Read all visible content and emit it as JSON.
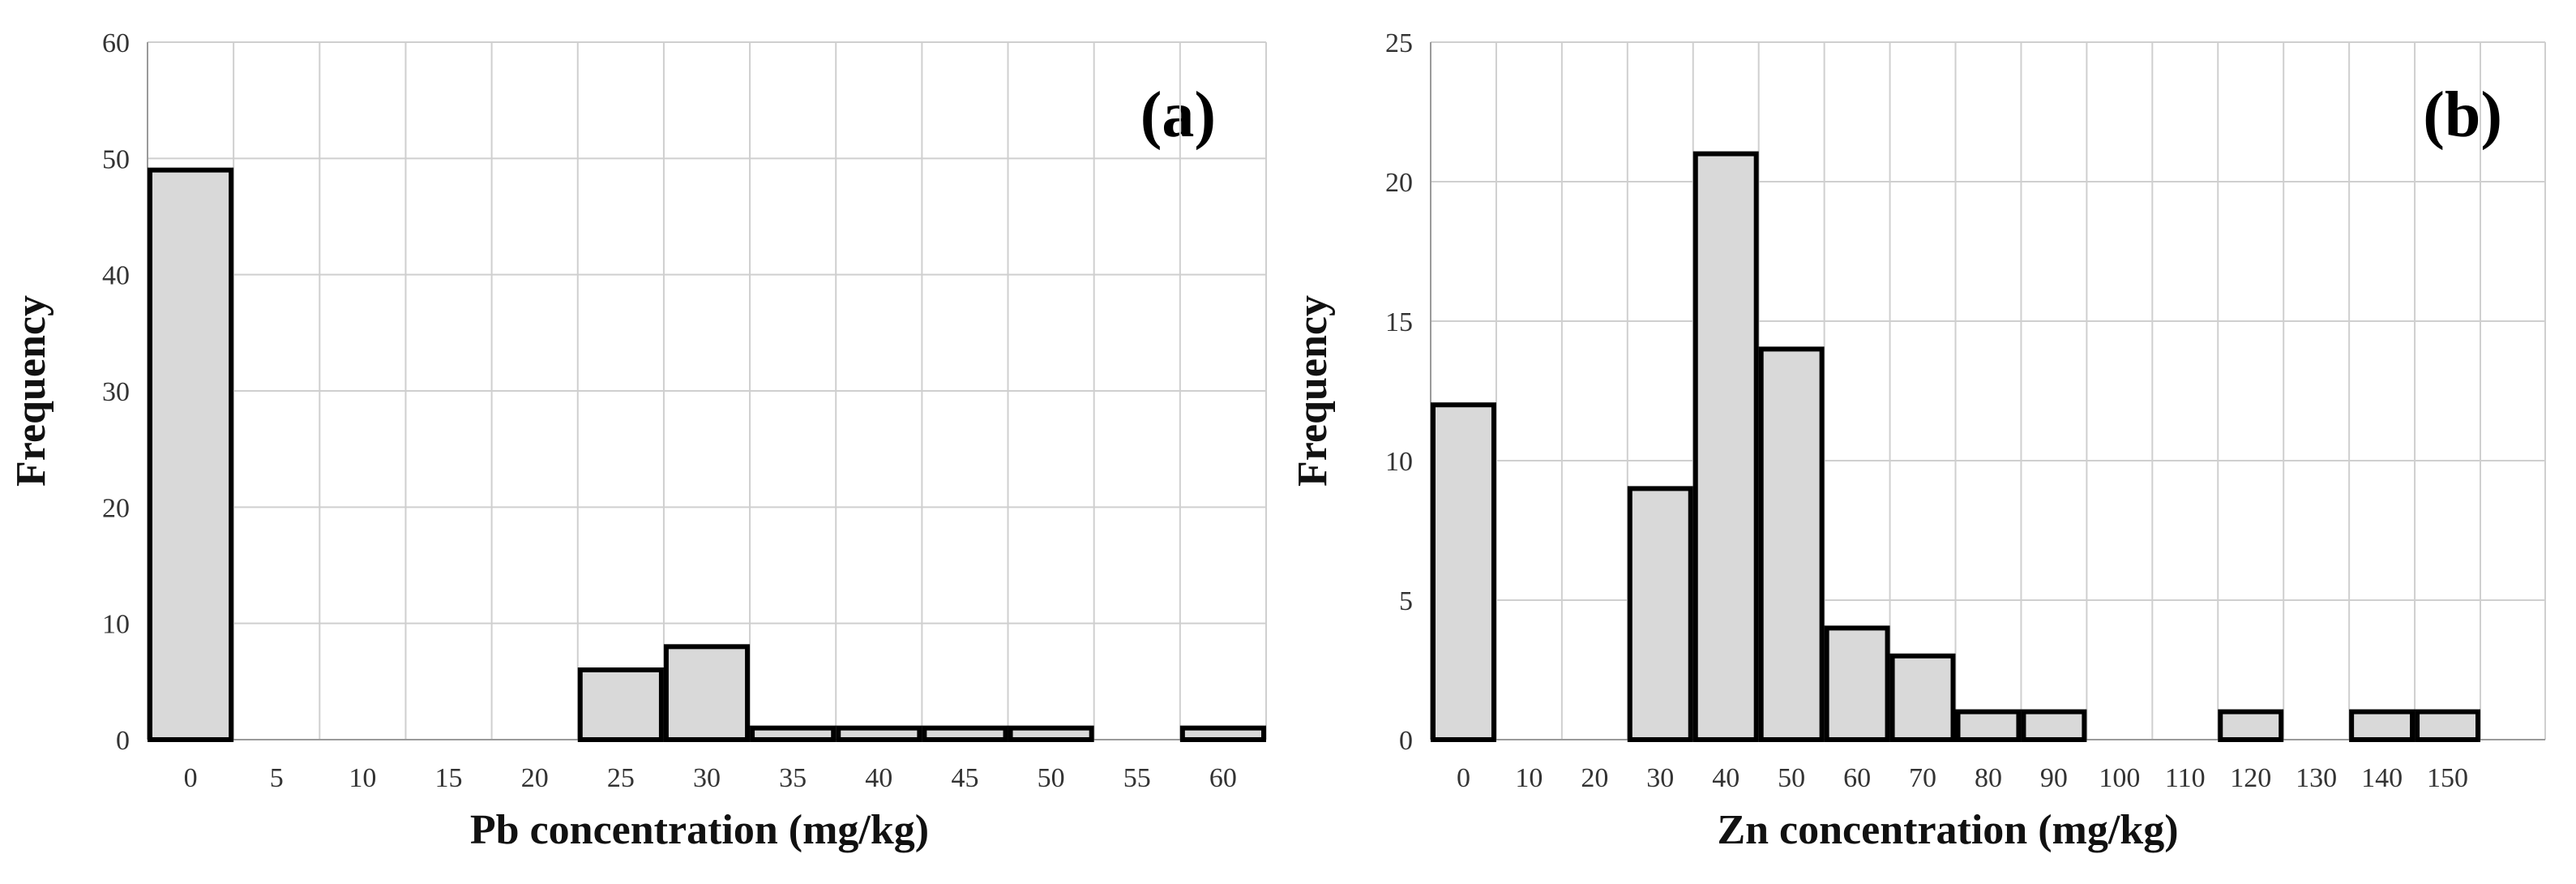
{
  "chart_data": [
    {
      "type": "bar",
      "panel_label": "(a)",
      "xlabel": "Pb concentration (mg/kg)",
      "ylabel": "Frequency",
      "ylim": [
        0,
        60
      ],
      "yticks": [
        "0",
        "10",
        "20",
        "30",
        "40",
        "50",
        "60"
      ],
      "xtick_labels": [
        "0",
        "5",
        "10",
        "15",
        "20",
        "25",
        "30",
        "35",
        "40",
        "45",
        "50",
        "55",
        "60"
      ],
      "bin_count": 13,
      "categories": [
        "0",
        "5",
        "10",
        "15",
        "20",
        "25",
        "30",
        "35",
        "40",
        "45",
        "50",
        "55",
        "60"
      ],
      "values": [
        49,
        0,
        0,
        0,
        0,
        6,
        8,
        1,
        1,
        1,
        1,
        0,
        1
      ],
      "grid": true
    },
    {
      "type": "bar",
      "panel_label": "(b)",
      "xlabel": "Zn concentration (mg/kg)",
      "ylabel": "Frequency",
      "ylim": [
        0,
        25
      ],
      "yticks": [
        "0",
        "5",
        "10",
        "15",
        "20",
        "25"
      ],
      "xtick_labels": [
        "0",
        "10",
        "20",
        "30",
        "40",
        "50",
        "60",
        "70",
        "80",
        "90",
        "100",
        "110",
        "120",
        "130",
        "140",
        "150"
      ],
      "bin_count": 16,
      "categories": [
        "0",
        "10",
        "20",
        "30",
        "40",
        "50",
        "60",
        "70",
        "80",
        "90",
        "100",
        "110",
        "120",
        "130",
        "140",
        "150"
      ],
      "values": [
        12,
        0,
        0,
        9,
        21,
        14,
        4,
        3,
        1,
        1,
        0,
        0,
        1,
        0,
        1,
        1
      ],
      "grid": true
    }
  ]
}
